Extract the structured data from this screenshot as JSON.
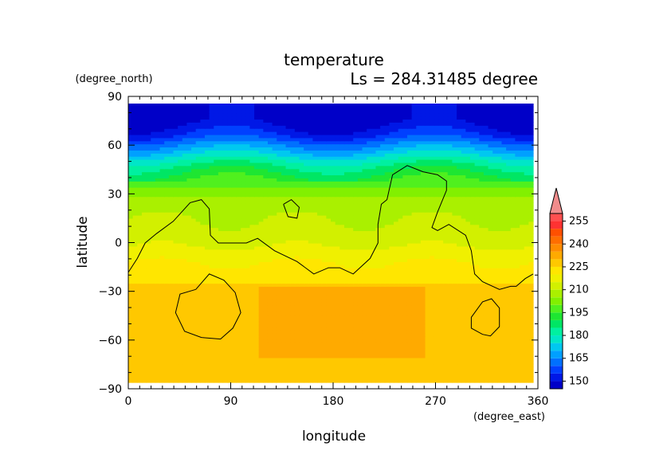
{
  "chart_data": {
    "type": "heatmap",
    "title": "temperature",
    "subtitle": "Ls = 284.31485 degree",
    "xlabel": "longitude",
    "ylabel": "latitude",
    "x_units": "(degree_east)",
    "y_units": "(degree_north)",
    "xlim": [
      0,
      360
    ],
    "ylim": [
      -90,
      90
    ],
    "x_ticks": [
      "0",
      "90",
      "180",
      "270",
      "360"
    ],
    "y_ticks": [
      "90",
      "60",
      "30",
      "0",
      "−30",
      "−60",
      "−90"
    ],
    "colorbar": {
      "levels": [
        145,
        150,
        155,
        160,
        165,
        170,
        175,
        180,
        185,
        190,
        195,
        200,
        205,
        210,
        215,
        220,
        225,
        230,
        235,
        240,
        245,
        250,
        255,
        260
      ],
      "tick_labels": [
        "150",
        "165",
        "180",
        "195",
        "210",
        "225",
        "240",
        "255"
      ],
      "tick_values": [
        150,
        165,
        180,
        195,
        210,
        225,
        240,
        255
      ],
      "colors": [
        "#0000c8",
        "#0018e6",
        "#0040ff",
        "#0070ff",
        "#00a0ff",
        "#00c8f0",
        "#00e6c8",
        "#00f0a0",
        "#00e664",
        "#1ee632",
        "#50f01e",
        "#82f000",
        "#aaf000",
        "#d2f000",
        "#f0f000",
        "#ffe600",
        "#ffc800",
        "#ffaa00",
        "#ff8c00",
        "#ff6e00",
        "#ff5000",
        "#ff3232",
        "#ff5050"
      ],
      "extend_max_color": "#f08c8c"
    },
    "zonal_profile": {
      "lat": [
        -90,
        -75,
        -65,
        -55,
        -40,
        -30,
        -20,
        -10,
        0,
        10,
        20,
        30,
        40,
        50,
        60,
        70,
        80,
        90
      ],
      "temp": [
        228,
        229,
        227,
        226,
        227,
        226,
        223,
        219,
        214,
        211,
        209,
        205,
        195,
        185,
        170,
        155,
        146,
        146
      ]
    },
    "warm_patch": {
      "lon": [
        110,
        270
      ],
      "lat": [
        -78,
        -25
      ],
      "value": 234
    },
    "contour_level": "213"
  }
}
